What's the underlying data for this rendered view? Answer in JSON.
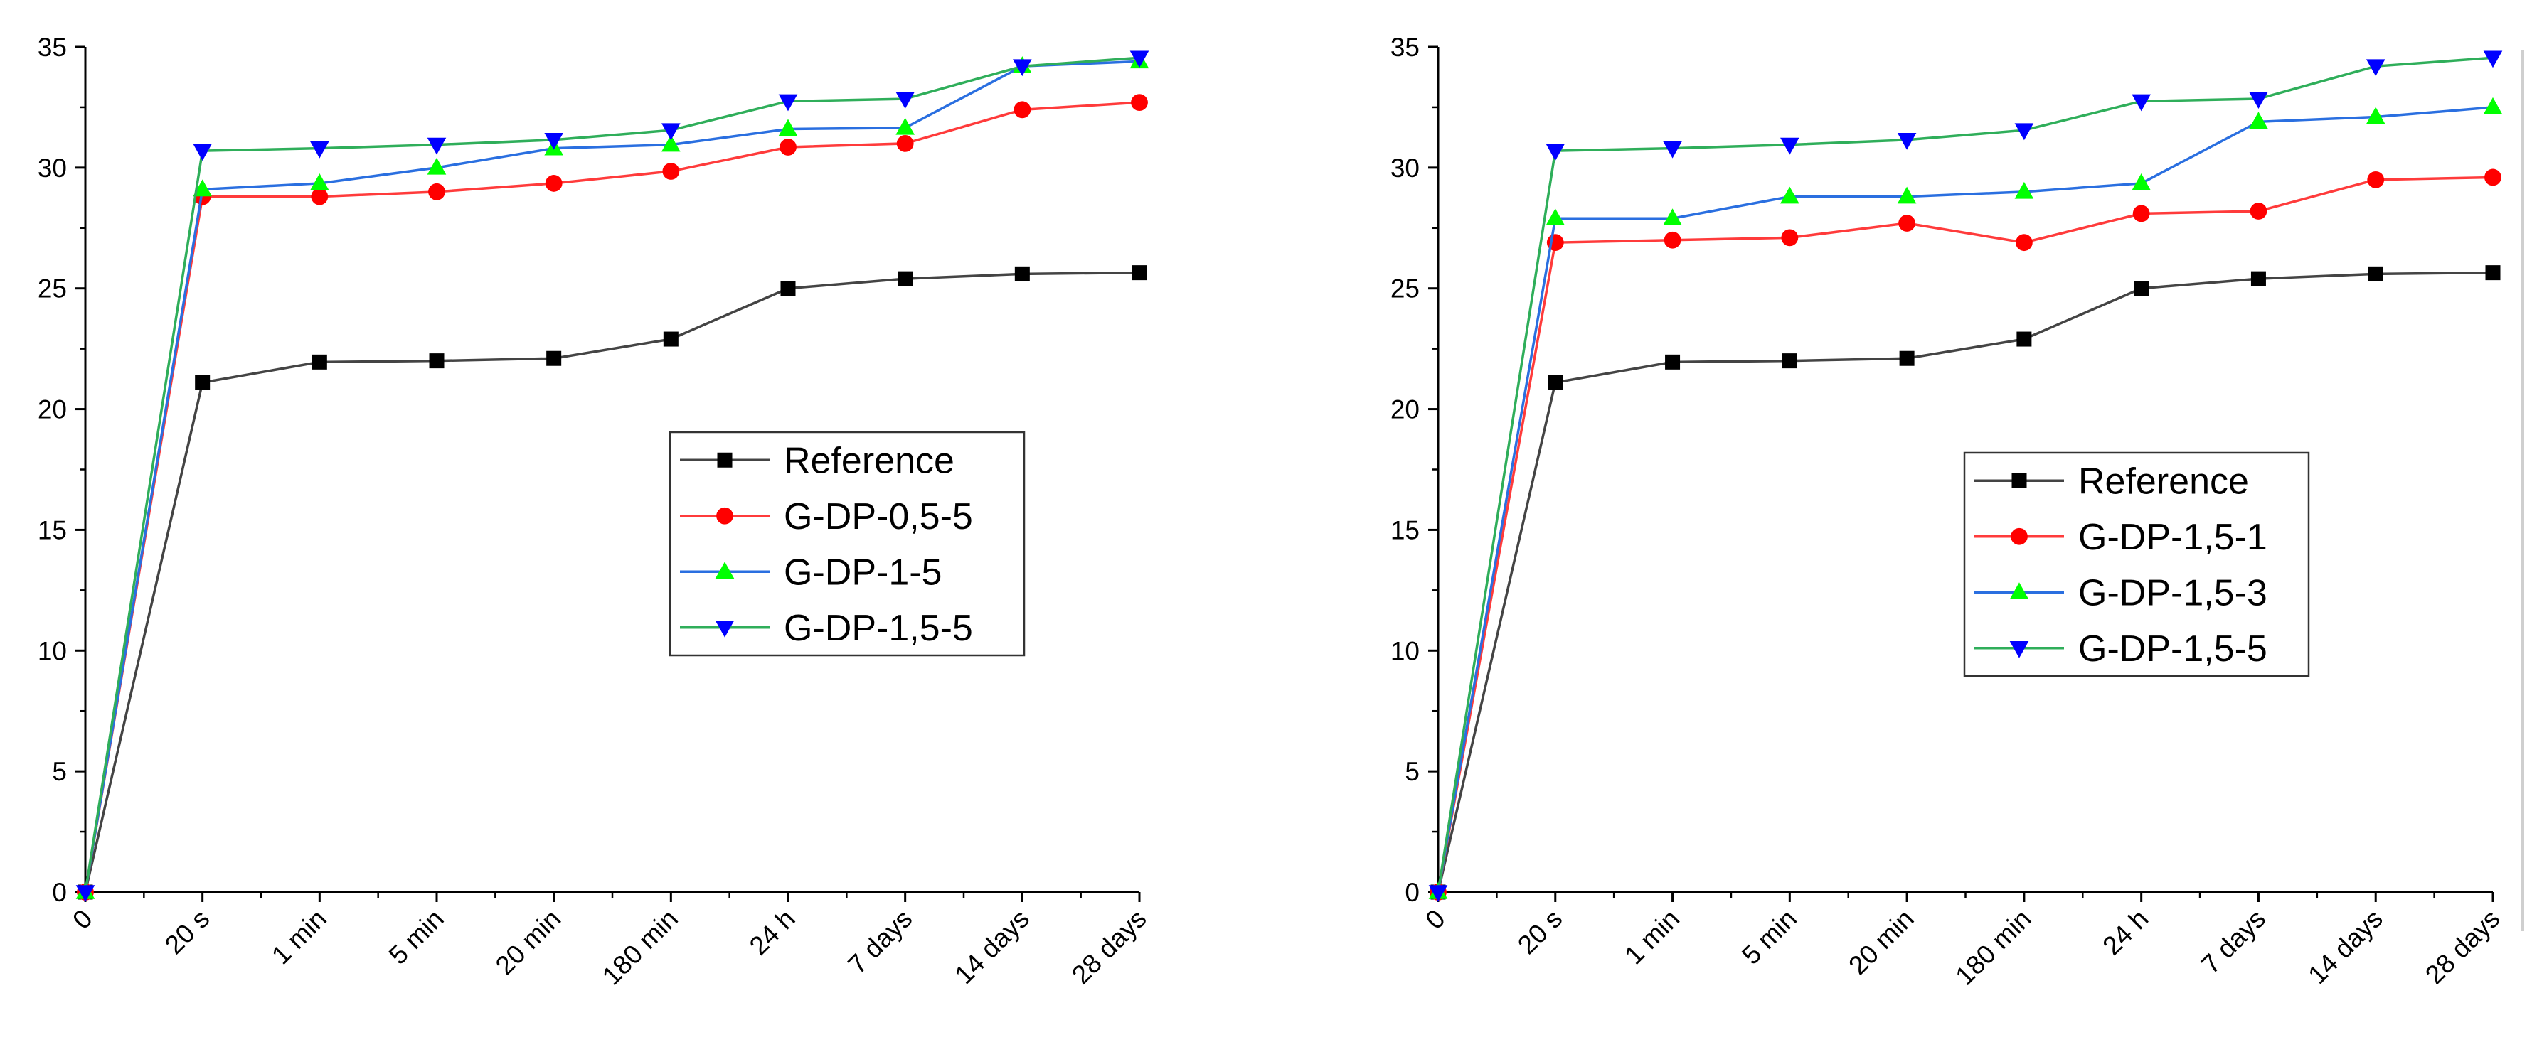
{
  "chart_data": [
    {
      "type": "line",
      "categories": [
        "0",
        "20 s",
        "1 min",
        "5 min",
        "20 min",
        "180 min",
        "24 h",
        "7 days",
        "14 days",
        "28 days"
      ],
      "ylim": [
        0,
        35
      ],
      "yticks": [
        "0",
        "5",
        "10",
        "15",
        "20",
        "25",
        "30",
        "35"
      ],
      "series": [
        {
          "name": "Reference",
          "color": "#444444",
          "marker": "square",
          "values": [
            0,
            21.1,
            21.95,
            22.0,
            22.1,
            22.9,
            25.0,
            25.4,
            25.6,
            25.65
          ]
        },
        {
          "name": "G-DP-0,5-5",
          "color": "#ff3b3b",
          "marker": "circle",
          "values": [
            0,
            28.8,
            28.8,
            29.0,
            29.35,
            29.85,
            30.85,
            31.0,
            32.4,
            32.7
          ]
        },
        {
          "name": "G-DP-1-5",
          "color": "#2a6fe0",
          "marker": "triangle-up",
          "values": [
            0,
            29.1,
            29.35,
            30.0,
            30.8,
            30.95,
            31.6,
            31.65,
            34.2,
            34.4
          ]
        },
        {
          "name": "G-DP-1,5-5",
          "color": "#2fae5a",
          "marker": "triangle-down",
          "values": [
            0,
            30.7,
            30.8,
            30.95,
            31.15,
            31.55,
            32.75,
            32.85,
            34.2,
            34.55
          ]
        }
      ],
      "legend": {
        "position": "center-right",
        "entries": [
          "Reference",
          "G-DP-0,5-5",
          "G-DP-1-5",
          "G-DP-1,5-5"
        ]
      }
    },
    {
      "type": "line",
      "categories": [
        "0",
        "20 s",
        "1 min",
        "5 min",
        "20 min",
        "180 min",
        "24 h",
        "7 days",
        "14 days",
        "28 days"
      ],
      "ylim": [
        0,
        35
      ],
      "yticks": [
        "0",
        "5",
        "10",
        "15",
        "20",
        "25",
        "30",
        "35"
      ],
      "series": [
        {
          "name": "Reference",
          "color": "#444444",
          "marker": "square",
          "values": [
            0,
            21.1,
            21.95,
            22.0,
            22.1,
            22.9,
            25.0,
            25.4,
            25.6,
            25.65
          ]
        },
        {
          "name": "G-DP-1,5-1",
          "color": "#ff3b3b",
          "marker": "circle",
          "values": [
            0,
            26.9,
            27.0,
            27.1,
            27.7,
            26.9,
            28.1,
            28.2,
            29.5,
            29.6
          ]
        },
        {
          "name": "G-DP-1,5-3",
          "color": "#2a6fe0",
          "marker": "triangle-up",
          "values": [
            0,
            27.9,
            27.9,
            28.8,
            28.8,
            29.0,
            29.35,
            31.9,
            32.1,
            32.5
          ]
        },
        {
          "name": "G-DP-1,5-5",
          "color": "#2fae5a",
          "marker": "triangle-down",
          "values": [
            0,
            30.7,
            30.8,
            30.95,
            31.15,
            31.55,
            32.75,
            32.85,
            34.2,
            34.55
          ]
        }
      ],
      "legend": {
        "position": "center-right",
        "entries": [
          "Reference",
          "G-DP-1,5-1",
          "G-DP-1,5-3",
          "G-DP-1,5-5"
        ]
      }
    }
  ],
  "colors": {
    "triangle_up_fill": "#00ff00",
    "triangle_down_fill": "#0000ff",
    "circle_fill": "#ff0000",
    "square_fill": "#000000",
    "axis": "#000000"
  }
}
